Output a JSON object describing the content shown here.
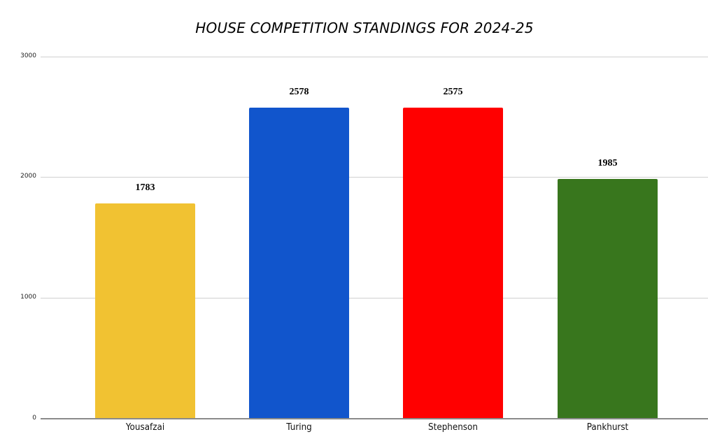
{
  "chart_data": {
    "type": "bar",
    "title": "HOUSE COMPETITION STANDINGS FOR 2024-25",
    "xlabel": "",
    "ylabel": "",
    "ylim": [
      0,
      3000
    ],
    "yticks": [
      "0",
      "1000",
      "2000",
      "3000"
    ],
    "grid": true,
    "legend": "none",
    "categories": [
      "Yousafzai",
      "Turing",
      "Stephenson",
      "Pankhurst"
    ],
    "values": [
      1783,
      2578,
      2575,
      1985
    ],
    "data_labels": [
      "1783",
      "2578",
      "2575",
      "1985"
    ],
    "colors": [
      "#f1c232",
      "#1155cc",
      "#ff0000",
      "#38761d"
    ]
  }
}
